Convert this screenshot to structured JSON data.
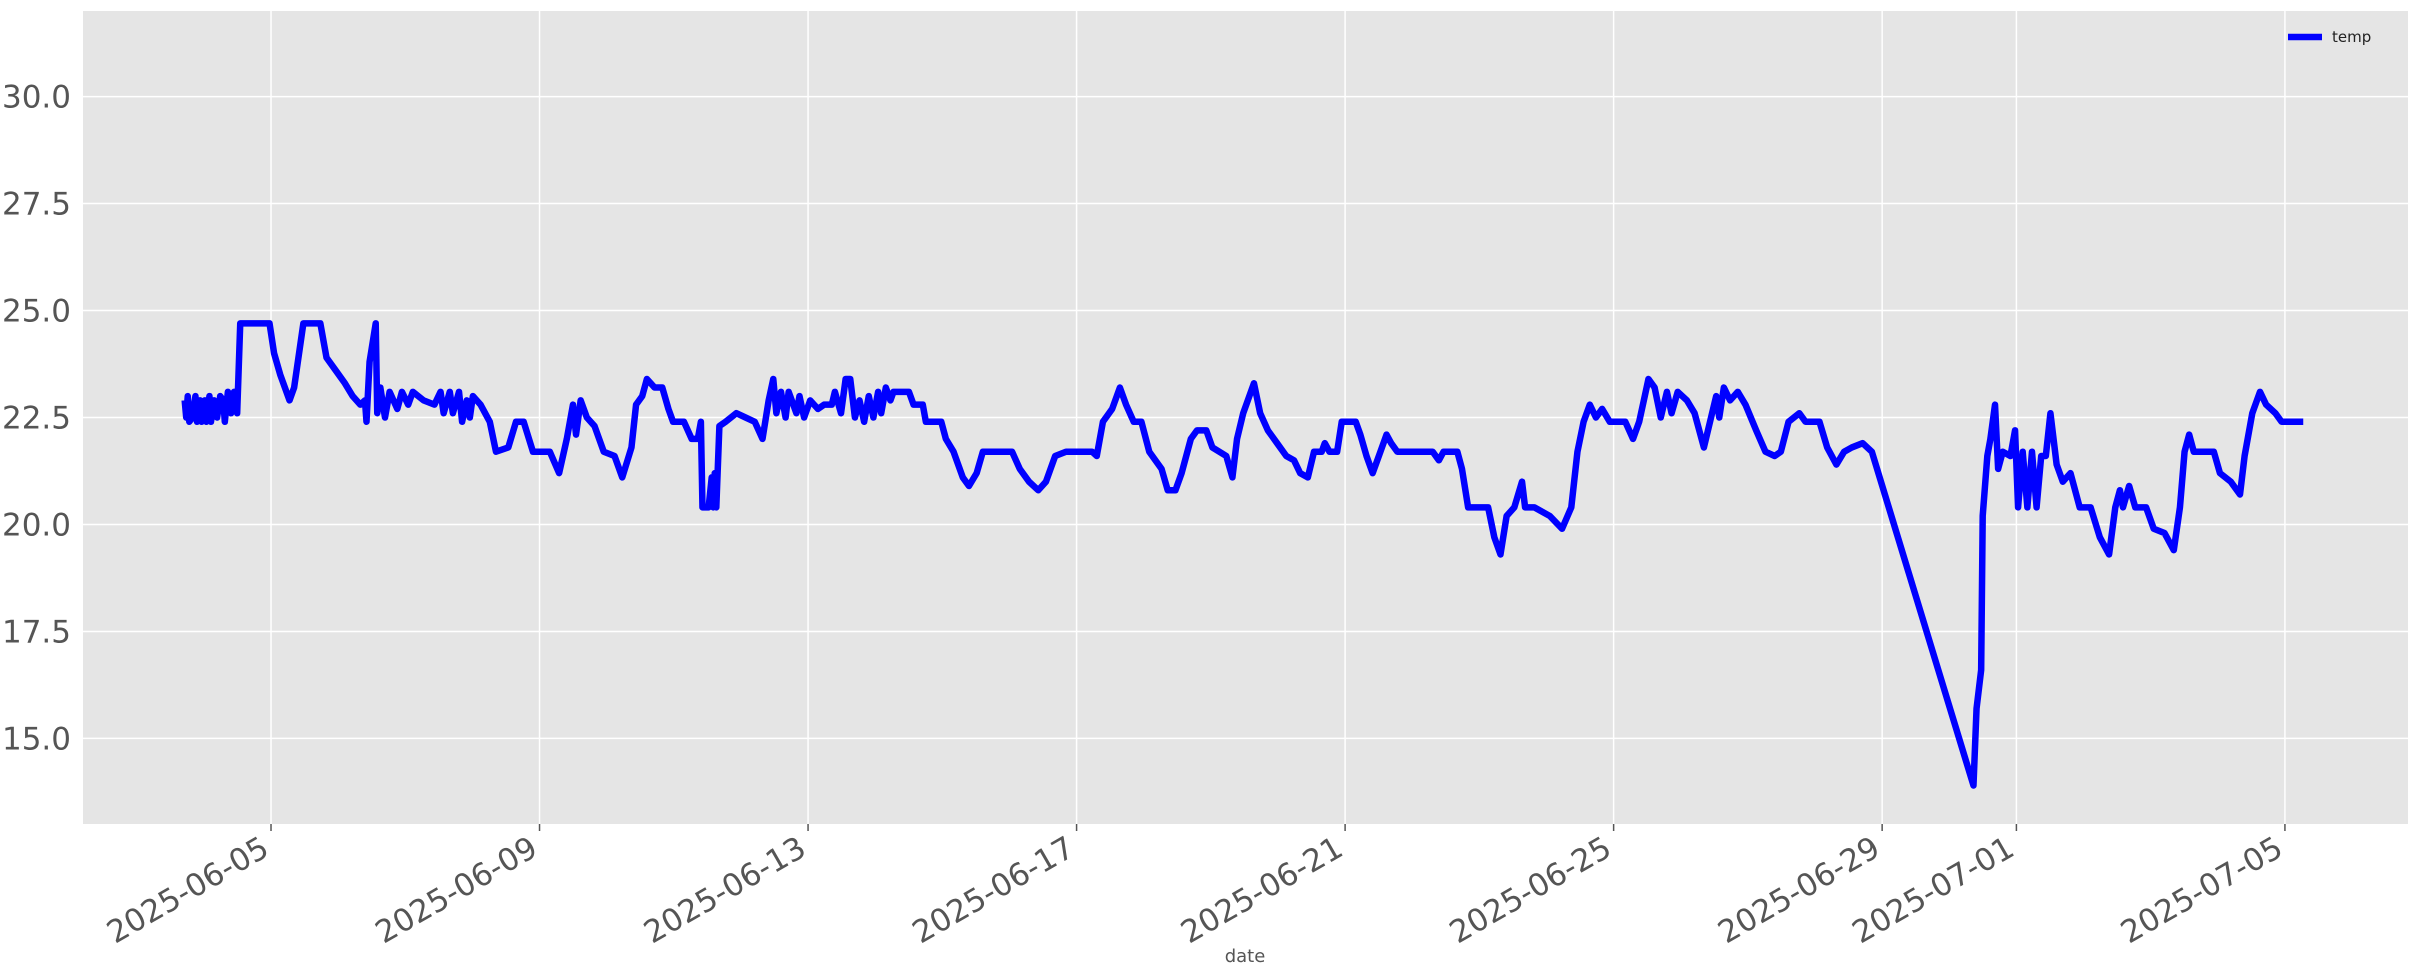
{
  "chart_data": {
    "type": "line",
    "x_label": "date",
    "x": [
      "2025-06-03T17:08",
      "2025-06-03T17:41",
      "2025-06-03T18:14",
      "2025-06-03T18:47",
      "2025-06-03T19:53",
      "2025-06-03T20:59",
      "2025-06-03T21:32",
      "2025-06-03T22:38",
      "2025-06-03T23:11",
      "2025-06-04T00:20",
      "2025-06-04T00:53",
      "2025-06-04T01:59",
      "2025-06-04T02:32",
      "2025-06-04T03:38",
      "2025-06-04T04:44",
      "2025-06-04T05:50",
      "2025-06-04T06:56",
      "2025-06-04T07:29",
      "2025-06-04T08:35",
      "2025-06-04T09:41",
      "2025-06-04T10:48",
      "2025-06-04T11:54",
      "2025-06-04T13:00",
      "2025-06-04T23:28",
      "2025-06-05T01:06",
      "2025-06-05T03:18",
      "2025-06-05T06:37",
      "2025-06-05T08:16",
      "2025-06-05T11:34",
      "2025-06-05T17:38",
      "2025-06-05T19:50",
      "2025-06-05T23:08",
      "2025-06-06T02:25",
      "2025-06-06T05:11",
      "2025-06-06T07:56",
      "2025-06-06T09:35",
      "2025-06-06T10:08",
      "2025-06-06T11:14",
      "2025-06-06T13:26",
      "2025-06-06T13:59",
      "2025-06-06T15:05",
      "2025-06-06T16:45",
      "2025-06-06T18:24",
      "2025-06-06T21:09",
      "2025-06-06T22:48",
      "2025-06-07T01:03",
      "2025-06-07T02:42",
      "2025-06-07T06:33",
      "2025-06-07T10:25",
      "2025-06-07T12:37",
      "2025-06-07T13:43",
      "2025-06-07T15:55",
      "2025-06-07T17:01",
      "2025-06-07T19:13",
      "2025-06-07T20:19",
      "2025-06-07T21:59",
      "2025-06-07T23:05",
      "2025-06-08T00:10",
      "2025-06-08T02:55",
      "2025-06-08T06:13",
      "2025-06-08T08:26",
      "2025-06-08T12:50",
      "2025-06-08T15:35",
      "2025-06-08T18:20",
      "2025-06-08T21:39",
      "2025-06-09T03:41",
      "2025-06-09T07:00",
      "2025-06-09T09:45",
      "2025-06-09T11:57",
      "2025-06-09T13:03",
      "2025-06-09T14:42",
      "2025-06-09T16:55",
      "2025-06-09T19:40",
      "2025-06-09T22:58",
      "2025-06-10T02:49",
      "2025-06-10T05:34",
      "2025-06-10T08:52",
      "2025-06-10T10:31",
      "2025-06-10T12:43",
      "2025-06-10T14:23",
      "2025-06-10T17:08",
      "2025-06-10T19:53",
      "2025-06-10T22:05",
      "2025-06-10T23:44",
      "2025-06-11T03:38",
      "2025-06-11T06:23",
      "2025-06-11T08:35",
      "2025-06-11T09:41",
      "2025-06-11T10:15",
      "2025-06-11T12:27",
      "2025-06-11T13:33",
      "2025-06-11T14:06",
      "2025-06-11T14:39",
      "2025-06-11T15:12",
      "2025-06-11T16:18",
      "2025-06-11T18:30",
      "2025-06-11T22:22",
      "2025-06-12T01:39",
      "2025-06-12T04:57",
      "2025-06-12T07:43",
      "2025-06-12T09:55",
      "2025-06-12T11:34",
      "2025-06-12T12:40",
      "2025-06-12T14:19",
      "2025-06-12T15:58",
      "2025-06-12T17:04",
      "2025-06-12T19:50",
      "2025-06-12T20:56",
      "2025-06-12T22:35",
      "2025-06-13T00:46",
      "2025-06-13T03:32",
      "2025-06-13T05:44",
      "2025-06-13T08:29",
      "2025-06-13T09:35",
      "2025-06-13T11:47",
      "2025-06-13T13:26",
      "2025-06-13T15:05",
      "2025-06-13T16:45",
      "2025-06-13T18:24",
      "2025-06-13T20:03",
      "2025-06-13T21:42",
      "2025-06-13T23:21",
      "2025-06-14T01:03",
      "2025-06-14T02:09",
      "2025-06-14T03:48",
      "2025-06-14T05:27",
      "2025-06-14T06:33",
      "2025-06-14T12:04",
      "2025-06-14T13:43",
      "2025-06-14T17:01",
      "2025-06-14T18:07",
      "2025-06-14T23:38",
      "2025-06-15T01:16",
      "2025-06-15T04:01",
      "2025-06-15T07:19",
      "2025-06-15T09:32",
      "2025-06-15T12:17",
      "2025-06-15T14:29",
      "2025-06-16T00:56",
      "2025-06-16T03:41",
      "2025-06-16T07:00",
      "2025-06-16T10:18",
      "2025-06-16T13:03",
      "2025-06-16T16:21",
      "2025-06-16T20:13",
      "2025-06-17T05:34",
      "2025-06-17T07:13",
      "2025-06-17T09:25",
      "2025-06-17T12:43",
      "2025-06-17T15:29",
      "2025-06-17T17:41",
      "2025-06-17T20:26",
      "2025-06-17T23:11",
      "2025-06-18T01:59",
      "2025-06-18T06:23",
      "2025-06-18T08:35",
      "2025-06-18T11:21",
      "2025-06-18T13:33",
      "2025-06-18T16:51",
      "2025-06-18T19:03",
      "2025-06-18T22:22",
      "2025-06-19T00:33",
      "2025-06-19T05:31",
      "2025-06-19T07:43",
      "2025-06-19T09:22",
      "2025-06-19T11:34",
      "2025-06-19T15:25",
      "2025-06-19T17:38",
      "2025-06-19T20:23",
      "2025-06-19T23:41",
      "2025-06-20T02:58",
      "2025-06-20T05:44",
      "2025-06-20T07:56",
      "2025-06-20T10:41",
      "2025-06-20T12:53",
      "2025-06-20T15:38",
      "2025-06-20T16:45",
      "2025-06-20T18:24",
      "2025-06-20T21:09",
      "2025-06-20T22:48",
      "2025-06-21T03:48",
      "2025-06-21T05:27",
      "2025-06-21T07:39",
      "2025-06-21T09:51",
      "2025-06-21T12:37",
      "2025-06-21T14:49",
      "2025-06-21T16:28",
      "2025-06-21T18:40",
      "2025-06-21T21:25",
      "2025-06-22T07:19",
      "2025-06-22T09:32",
      "2025-06-22T11:11",
      "2025-06-22T16:08",
      "2025-06-22T17:47",
      "2025-06-22T19:59",
      "2025-06-23T03:08",
      "2025-06-23T05:21",
      "2025-06-23T07:33",
      "2025-06-23T09:45",
      "2025-06-23T12:30",
      "2025-06-23T15:15",
      "2025-06-23T16:21",
      "2025-06-23T19:40",
      "2025-06-24T01:09",
      "2025-06-24T05:34",
      "2025-06-24T08:52",
      "2025-06-24T11:04",
      "2025-06-24T13:16",
      "2025-06-24T15:29",
      "2025-06-24T17:41",
      "2025-06-24T19:53",
      "2025-06-24T22:38",
      "2025-06-25T04:11",
      "2025-06-25T06:56",
      "2025-06-25T09:08",
      "2025-06-25T10:48",
      "2025-06-25T12:27",
      "2025-06-25T14:39",
      "2025-06-25T16:51",
      "2025-06-25T19:03",
      "2025-06-25T20:43",
      "2025-06-25T22:55",
      "2025-06-26T02:12",
      "2025-06-26T04:57",
      "2025-06-26T08:16",
      "2025-06-26T10:28",
      "2025-06-26T12:40",
      "2025-06-26T13:46",
      "2025-06-26T15:25",
      "2025-06-26T17:38",
      "2025-06-26T20:23",
      "2025-06-26T23:08",
      "2025-06-27T02:58",
      "2025-06-27T06:17",
      "2025-06-27T09:35",
      "2025-06-27T11:47",
      "2025-06-27T14:32",
      "2025-06-27T18:24",
      "2025-06-27T20:36",
      "2025-06-28T01:36",
      "2025-06-28T04:21",
      "2025-06-28T07:39",
      "2025-06-28T10:25",
      "2025-06-28T13:10",
      "2025-06-28T17:01",
      "2025-06-28T20:19",
      "2025-06-30T08:39",
      "2025-06-30T09:45",
      "2025-06-30T11:24",
      "2025-06-30T11:57",
      "2025-06-30T13:36",
      "2025-06-30T14:42",
      "2025-06-30T16:21",
      "2025-06-30T17:28",
      "2025-06-30T19:07",
      "2025-06-30T21:52",
      "2025-06-30T23:31",
      "2025-07-01T00:36",
      "2025-07-01T02:15",
      "2025-07-01T03:55",
      "2025-07-01T05:34",
      "2025-07-01T07:13",
      "2025-07-01T08:52",
      "2025-07-01T10:31",
      "2025-07-01T12:10",
      "2025-07-01T14:23",
      "2025-07-01T16:35",
      "2025-07-01T19:20",
      "2025-07-01T22:38",
      "2025-07-02T02:32",
      "2025-07-02T05:50",
      "2025-07-02T09:08",
      "2025-07-02T11:21",
      "2025-07-02T13:00",
      "2025-07-02T14:06",
      "2025-07-02T16:18",
      "2025-07-02T18:30",
      "2025-07-02T22:22",
      "2025-07-03T01:06",
      "2025-07-03T04:57",
      "2025-07-03T08:16",
      "2025-07-03T10:28",
      "2025-07-03T12:07",
      "2025-07-03T13:46",
      "2025-07-03T15:25",
      "2025-07-03T22:35",
      "2025-07-04T00:46",
      "2025-07-04T04:38",
      "2025-07-04T07:56",
      "2025-07-04T09:35",
      "2025-07-04T12:20",
      "2025-07-04T15:05",
      "2025-07-04T17:17",
      "2025-07-04T20:36",
      "2025-07-04T22:48",
      "2025-07-05T06:33"
    ],
    "series": [
      {
        "name": "temp",
        "color": "#0000ff",
        "values": [
          22.9,
          22.5,
          23.0,
          22.4,
          22.5,
          23.0,
          22.4,
          22.9,
          22.4,
          22.9,
          22.4,
          23.0,
          22.4,
          22.9,
          22.5,
          23.0,
          22.9,
          22.4,
          23.1,
          22.6,
          23.1,
          22.6,
          24.7,
          24.7,
          24.0,
          23.5,
          22.9,
          23.2,
          24.7,
          24.7,
          23.9,
          23.6,
          23.3,
          23.0,
          22.8,
          22.9,
          22.4,
          23.8,
          24.7,
          22.6,
          23.2,
          22.5,
          23.1,
          22.7,
          23.1,
          22.8,
          23.1,
          22.9,
          22.8,
          23.1,
          22.6,
          23.1,
          22.6,
          23.1,
          22.4,
          22.9,
          22.5,
          23.0,
          22.8,
          22.4,
          21.7,
          21.8,
          22.4,
          22.4,
          21.7,
          21.7,
          21.2,
          22.0,
          22.8,
          22.1,
          22.9,
          22.5,
          22.3,
          21.7,
          21.6,
          21.1,
          21.8,
          22.8,
          23.0,
          23.4,
          23.2,
          23.2,
          22.7,
          22.4,
          22.4,
          22.0,
          22.0,
          22.4,
          20.4,
          20.4,
          21.1,
          20.4,
          21.2,
          20.4,
          22.3,
          22.4,
          22.6,
          22.5,
          22.4,
          22.0,
          22.9,
          23.4,
          22.6,
          23.1,
          22.5,
          23.1,
          22.6,
          23.0,
          22.5,
          22.9,
          22.7,
          22.8,
          22.8,
          23.1,
          22.6,
          23.4,
          23.4,
          22.5,
          22.9,
          22.4,
          23.0,
          22.5,
          23.1,
          22.6,
          23.2,
          22.9,
          23.1,
          23.1,
          22.8,
          22.8,
          22.4,
          22.4,
          22.0,
          21.7,
          21.1,
          20.9,
          21.2,
          21.7,
          21.7,
          21.3,
          21.0,
          20.8,
          21.0,
          21.6,
          21.7,
          21.7,
          21.6,
          22.4,
          22.7,
          23.2,
          22.8,
          22.4,
          22.4,
          21.7,
          21.3,
          20.8,
          20.8,
          21.2,
          22.0,
          22.2,
          22.2,
          21.8,
          21.6,
          21.1,
          22.0,
          22.6,
          23.3,
          22.6,
          22.2,
          21.9,
          21.6,
          21.5,
          21.2,
          21.1,
          21.7,
          21.7,
          21.9,
          21.7,
          21.7,
          22.4,
          22.4,
          22.1,
          21.6,
          21.2,
          21.7,
          22.1,
          21.9,
          21.7,
          21.7,
          21.7,
          21.5,
          21.7,
          21.7,
          21.3,
          20.4,
          20.4,
          19.7,
          19.3,
          20.2,
          20.4,
          21.0,
          20.4,
          20.4,
          20.2,
          19.9,
          20.4,
          21.7,
          22.4,
          22.8,
          22.5,
          22.7,
          22.4,
          22.4,
          22.0,
          22.4,
          22.9,
          23.4,
          23.2,
          22.5,
          23.1,
          22.6,
          23.1,
          22.9,
          22.6,
          21.8,
          22.4,
          23.0,
          22.5,
          23.2,
          22.9,
          23.1,
          22.8,
          22.2,
          21.7,
          21.6,
          21.7,
          22.4,
          22.6,
          22.4,
          22.4,
          21.8,
          21.4,
          21.7,
          21.8,
          21.9,
          21.7,
          13.9,
          15.7,
          16.6,
          20.2,
          21.6,
          22.0,
          22.8,
          21.3,
          21.7,
          21.6,
          22.2,
          20.4,
          21.7,
          20.4,
          21.7,
          20.4,
          21.6,
          21.6,
          22.6,
          21.4,
          21.0,
          21.2,
          20.4,
          20.4,
          19.7,
          19.3,
          20.4,
          20.8,
          20.4,
          20.9,
          20.4,
          20.4,
          19.9,
          19.8,
          19.4,
          20.4,
          21.7,
          22.1,
          21.7,
          21.7,
          21.2,
          21.0,
          20.7,
          21.6,
          22.6,
          23.1,
          22.8,
          22.6,
          22.4,
          22.4
        ]
      }
    ],
    "xlim": [
      "2025-06-02T04:47",
      "2025-07-06T20:00"
    ],
    "xticks": [
      "2025-06-05",
      "2025-06-09",
      "2025-06-13",
      "2025-06-17",
      "2025-06-21",
      "2025-06-25",
      "2025-06-29",
      "2025-07-01",
      "2025-07-05"
    ],
    "ylim": [
      13.0,
      32.0
    ],
    "yticks": [
      {
        "value": 15,
        "label": "15.0"
      },
      {
        "value": 17.5,
        "label": "17.5"
      },
      {
        "value": 20,
        "label": "20.0"
      },
      {
        "value": 22.5,
        "label": "22.5"
      },
      {
        "value": 25,
        "label": "25.0"
      },
      {
        "value": 27.5,
        "label": "27.5"
      },
      {
        "value": 30,
        "label": "30.0"
      }
    ],
    "grid": true,
    "legend": "upper right"
  }
}
